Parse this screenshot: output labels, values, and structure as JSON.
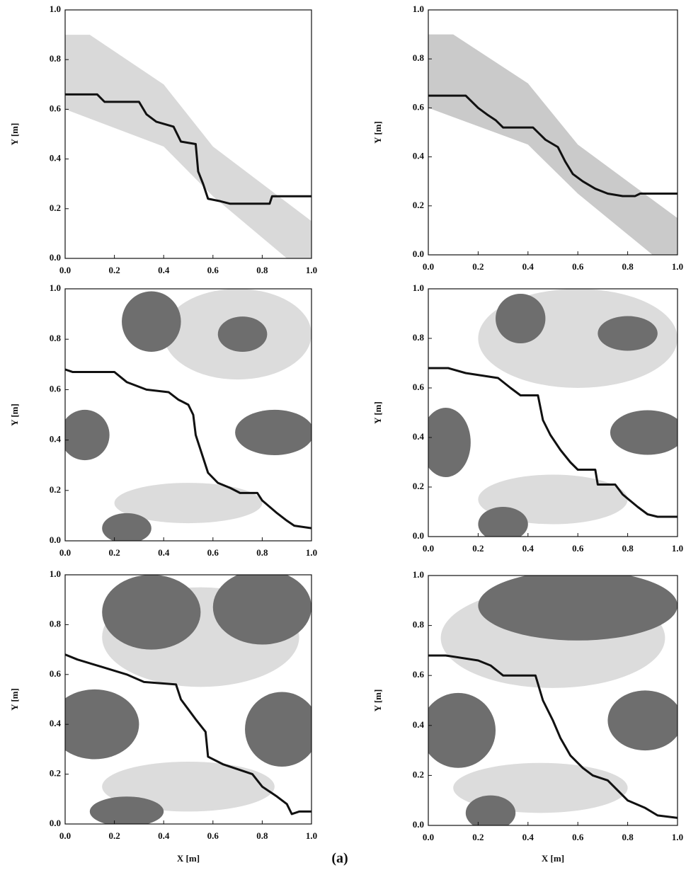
{
  "chart_data": [
    {
      "type": "line",
      "y_label": "Y [m]",
      "xlim": [
        0,
        1
      ],
      "ylim": [
        0,
        1
      ],
      "xticks": [
        {
          "value": 0,
          "label": "0.0"
        },
        {
          "value": 0.2,
          "label": "0.2"
        },
        {
          "value": 0.4,
          "label": "0.4"
        },
        {
          "value": 0.6,
          "label": "0.6"
        },
        {
          "value": 0.8,
          "label": "0.8"
        },
        {
          "value": 1,
          "label": "1.0"
        }
      ],
      "yticks": [
        {
          "value": 0,
          "label": "0.0"
        },
        {
          "value": 0.2,
          "label": "0.2"
        },
        {
          "value": 0.4,
          "label": "0.4"
        },
        {
          "value": 0.6,
          "label": "0.6"
        },
        {
          "value": 0.8,
          "label": "0.8"
        },
        {
          "value": 1,
          "label": "1.0"
        }
      ],
      "series": [
        {
          "color": "#111111",
          "x": [
            0,
            0.13,
            0.16,
            0.3,
            0.33,
            0.37,
            0.44,
            0.47,
            0.53,
            0.54,
            0.56,
            0.58,
            0.63,
            0.67,
            0.83,
            0.84,
            1
          ],
          "y": [
            0.66,
            0.66,
            0.63,
            0.63,
            0.58,
            0.55,
            0.53,
            0.47,
            0.46,
            0.35,
            0.3,
            0.24,
            0.23,
            0.22,
            0.22,
            0.25,
            0.25
          ]
        }
      ]
    },
    {
      "type": "line",
      "y_label": "Y [m]",
      "xlim": [
        0,
        1
      ],
      "ylim": [
        0,
        1
      ],
      "xticks": [
        {
          "value": 0,
          "label": "0.0"
        },
        {
          "value": 0.2,
          "label": "0.2"
        },
        {
          "value": 0.4,
          "label": "0.4"
        },
        {
          "value": 0.6,
          "label": "0.6"
        },
        {
          "value": 0.8,
          "label": "0.8"
        },
        {
          "value": 1,
          "label": "1.0"
        }
      ],
      "yticks": [
        {
          "value": 0,
          "label": "0.0"
        },
        {
          "value": 0.2,
          "label": "0.2"
        },
        {
          "value": 0.4,
          "label": "0.4"
        },
        {
          "value": 0.6,
          "label": "0.6"
        },
        {
          "value": 0.8,
          "label": "0.8"
        },
        {
          "value": 1,
          "label": "1.0"
        }
      ],
      "series": [
        {
          "color": "#111111",
          "x": [
            0,
            0.15,
            0.2,
            0.24,
            0.27,
            0.3,
            0.42,
            0.47,
            0.52,
            0.55,
            0.58,
            0.62,
            0.67,
            0.72,
            0.78,
            0.83,
            0.85,
            1
          ],
          "y": [
            0.65,
            0.65,
            0.6,
            0.57,
            0.55,
            0.52,
            0.52,
            0.47,
            0.44,
            0.38,
            0.33,
            0.3,
            0.27,
            0.25,
            0.24,
            0.24,
            0.25,
            0.25
          ]
        }
      ]
    },
    {
      "type": "line",
      "y_label": "Y [m]",
      "xlim": [
        0,
        1
      ],
      "ylim": [
        0,
        1
      ],
      "xticks": [
        {
          "value": 0,
          "label": "0.0"
        },
        {
          "value": 0.2,
          "label": "0.2"
        },
        {
          "value": 0.4,
          "label": "0.4"
        },
        {
          "value": 0.6,
          "label": "0.6"
        },
        {
          "value": 0.8,
          "label": "0.8"
        },
        {
          "value": 1,
          "label": "1.0"
        }
      ],
      "yticks": [
        {
          "value": 0,
          "label": "0.0"
        },
        {
          "value": 0.2,
          "label": "0.2"
        },
        {
          "value": 0.4,
          "label": "0.4"
        },
        {
          "value": 0.6,
          "label": "0.6"
        },
        {
          "value": 0.8,
          "label": "0.8"
        },
        {
          "value": 1,
          "label": "1.0"
        }
      ],
      "series": [
        {
          "color": "#111111",
          "x": [
            0,
            0.03,
            0.2,
            0.25,
            0.33,
            0.42,
            0.46,
            0.5,
            0.52,
            0.53,
            0.56,
            0.58,
            0.62,
            0.67,
            0.71,
            0.78,
            0.8,
            0.86,
            0.9,
            0.93,
            1
          ],
          "y": [
            0.68,
            0.67,
            0.67,
            0.63,
            0.6,
            0.59,
            0.56,
            0.54,
            0.5,
            0.42,
            0.33,
            0.27,
            0.23,
            0.21,
            0.19,
            0.19,
            0.16,
            0.11,
            0.08,
            0.06,
            0.05
          ]
        }
      ]
    },
    {
      "type": "line",
      "y_label": "Y [m]",
      "xlim": [
        0,
        1
      ],
      "ylim": [
        0,
        1
      ],
      "xticks": [
        {
          "value": 0,
          "label": "0.0"
        },
        {
          "value": 0.2,
          "label": "0.2"
        },
        {
          "value": 0.4,
          "label": "0.4"
        },
        {
          "value": 0.6,
          "label": "0.6"
        },
        {
          "value": 0.8,
          "label": "0.8"
        },
        {
          "value": 1,
          "label": "1.0"
        }
      ],
      "yticks": [
        {
          "value": 0,
          "label": "0.0"
        },
        {
          "value": 0.2,
          "label": "0.2"
        },
        {
          "value": 0.4,
          "label": "0.4"
        },
        {
          "value": 0.6,
          "label": "0.6"
        },
        {
          "value": 0.8,
          "label": "0.8"
        },
        {
          "value": 1,
          "label": "1.0"
        }
      ],
      "series": [
        {
          "color": "#111111",
          "x": [
            0,
            0.08,
            0.15,
            0.28,
            0.33,
            0.37,
            0.44,
            0.46,
            0.49,
            0.53,
            0.57,
            0.6,
            0.67,
            0.68,
            0.75,
            0.78,
            0.84,
            0.88,
            0.92,
            1
          ],
          "y": [
            0.68,
            0.68,
            0.66,
            0.64,
            0.6,
            0.57,
            0.57,
            0.47,
            0.41,
            0.35,
            0.3,
            0.27,
            0.27,
            0.21,
            0.21,
            0.17,
            0.12,
            0.09,
            0.08,
            0.08
          ]
        }
      ]
    },
    {
      "type": "line",
      "y_label": "Y [m]",
      "x_label": "X [m]",
      "xlim": [
        0,
        1
      ],
      "ylim": [
        0,
        1
      ],
      "xticks": [
        {
          "value": 0,
          "label": "0.0"
        },
        {
          "value": 0.2,
          "label": "0.2"
        },
        {
          "value": 0.4,
          "label": "0.4"
        },
        {
          "value": 0.6,
          "label": "0.6"
        },
        {
          "value": 0.8,
          "label": "0.8"
        },
        {
          "value": 1,
          "label": "1.0"
        }
      ],
      "yticks": [
        {
          "value": 0,
          "label": "0.0"
        },
        {
          "value": 0.2,
          "label": "0.2"
        },
        {
          "value": 0.4,
          "label": "0.4"
        },
        {
          "value": 0.6,
          "label": "0.6"
        },
        {
          "value": 0.8,
          "label": "0.8"
        },
        {
          "value": 1,
          "label": "1.0"
        }
      ],
      "series": [
        {
          "color": "#111111",
          "x": [
            0,
            0.05,
            0.15,
            0.25,
            0.32,
            0.45,
            0.47,
            0.5,
            0.53,
            0.57,
            0.58,
            0.64,
            0.7,
            0.76,
            0.8,
            0.86,
            0.9,
            0.92,
            0.95,
            1
          ],
          "y": [
            0.68,
            0.66,
            0.63,
            0.6,
            0.57,
            0.56,
            0.5,
            0.46,
            0.42,
            0.37,
            0.27,
            0.24,
            0.22,
            0.2,
            0.15,
            0.11,
            0.08,
            0.04,
            0.05,
            0.05
          ]
        }
      ]
    },
    {
      "type": "line",
      "y_label": "Y [m]",
      "x_label": "X [m]",
      "xlim": [
        0,
        1
      ],
      "ylim": [
        0,
        1
      ],
      "xticks": [
        {
          "value": 0,
          "label": "0.0"
        },
        {
          "value": 0.2,
          "label": "0.2"
        },
        {
          "value": 0.4,
          "label": "0.4"
        },
        {
          "value": 0.6,
          "label": "0.6"
        },
        {
          "value": 0.8,
          "label": "0.8"
        },
        {
          "value": 1,
          "label": "1.0"
        }
      ],
      "yticks": [
        {
          "value": 0,
          "label": "0.0"
        },
        {
          "value": 0.2,
          "label": "0.2"
        },
        {
          "value": 0.4,
          "label": "0.4"
        },
        {
          "value": 0.6,
          "label": "0.6"
        },
        {
          "value": 0.8,
          "label": "0.8"
        },
        {
          "value": 1,
          "label": "1.0"
        }
      ],
      "series": [
        {
          "color": "#111111",
          "x": [
            0,
            0.07,
            0.2,
            0.25,
            0.3,
            0.43,
            0.46,
            0.5,
            0.53,
            0.57,
            0.62,
            0.66,
            0.72,
            0.76,
            0.8,
            0.87,
            0.92,
            1
          ],
          "y": [
            0.68,
            0.68,
            0.66,
            0.64,
            0.6,
            0.6,
            0.5,
            0.42,
            0.35,
            0.28,
            0.23,
            0.2,
            0.18,
            0.14,
            0.1,
            0.07,
            0.04,
            0.03
          ]
        }
      ]
    }
  ],
  "caption": "(a)"
}
